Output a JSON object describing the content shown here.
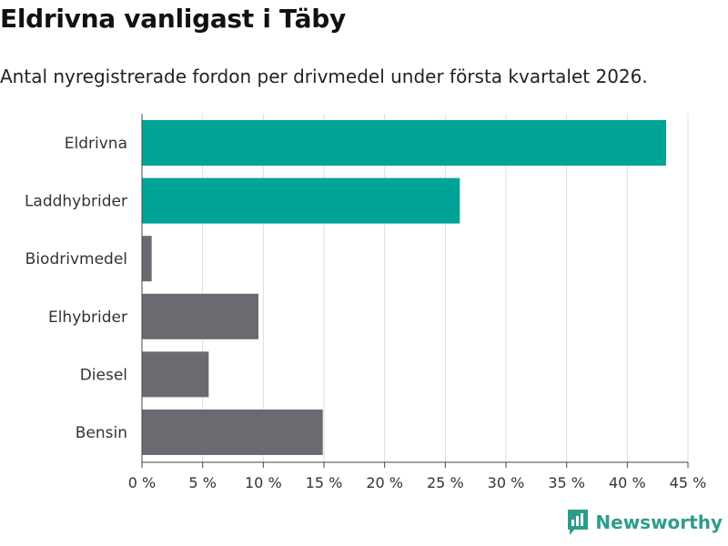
{
  "header": {
    "title": "Eldrivna vanligast i Täby",
    "subtitle": "Antal nyregistrerade fordon per drivmedel under första kvartalet 2026."
  },
  "brand": {
    "name": "Newsworthy",
    "icon": "newsworthy-logo-icon",
    "color": "#2e9c8c"
  },
  "colors": {
    "highlight": "#00a497",
    "muted": "#6b6a70",
    "grid": "#dddddd"
  },
  "chart_data": {
    "type": "bar",
    "orientation": "horizontal",
    "title": "Eldrivna vanligast i Täby",
    "subtitle": "Antal nyregistrerade fordon per drivmedel under första kvartalet 2026.",
    "categories": [
      "Eldrivna",
      "Laddhybrider",
      "Biodrivmedel",
      "Elhybrider",
      "Diesel",
      "Bensin"
    ],
    "values": [
      43.2,
      26.2,
      0.8,
      9.6,
      5.5,
      14.9
    ],
    "highlighted": [
      true,
      true,
      false,
      false,
      false,
      false
    ],
    "unit": "%",
    "xlim": [
      0,
      45
    ],
    "xticks": [
      0,
      5,
      10,
      15,
      20,
      25,
      30,
      35,
      40,
      45
    ],
    "xtick_labels": [
      "0 %",
      "5 %",
      "10 %",
      "15 %",
      "20 %",
      "25 %",
      "30 %",
      "35 %",
      "40 %",
      "45 %"
    ],
    "xlabel": "",
    "ylabel": "",
    "grid": "vertical"
  }
}
